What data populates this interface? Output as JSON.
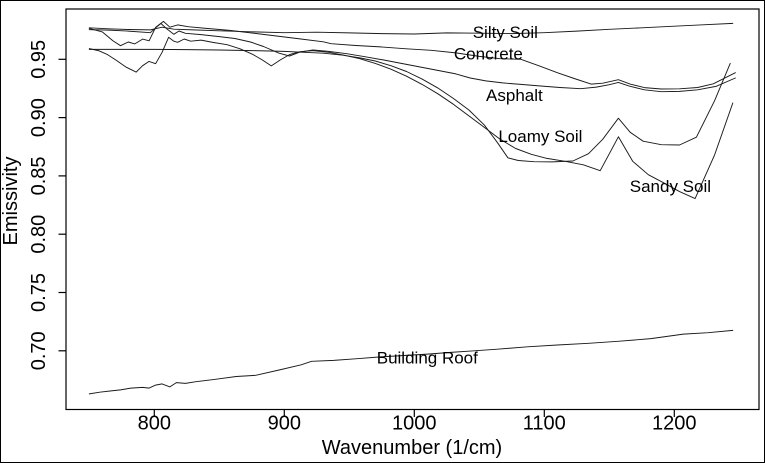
{
  "figure": {
    "background": "#ffffff",
    "border_color": "#000000",
    "line_color": "#1a1a1a"
  },
  "chart_data": {
    "type": "line",
    "title": "",
    "xlabel": "Wavenumber (1/cm)",
    "ylabel": "Emissivity",
    "x_ticks": [
      "800",
      "900",
      "1000",
      "1100",
      "1200"
    ],
    "y_ticks": [
      "0.70",
      "0.75",
      "0.80",
      "0.85",
      "0.90",
      "0.95"
    ],
    "x_axis_range": [
      745,
      1265
    ],
    "y_axis_range": [
      0.648,
      0.992
    ],
    "grid": false,
    "legend_position": "inline-labels",
    "series": [
      {
        "name": "Silty Soil",
        "label": {
          "x": 1070,
          "y": 0.9734
        },
        "points": [
          [
            750,
            0.977
          ],
          [
            765,
            0.9762
          ],
          [
            780,
            0.9756
          ],
          [
            797,
            0.9752
          ],
          [
            806,
            0.9775
          ],
          [
            815,
            0.9758
          ],
          [
            830,
            0.9752
          ],
          [
            850,
            0.9744
          ],
          [
            875,
            0.9736
          ],
          [
            900,
            0.9728
          ],
          [
            925,
            0.9732
          ],
          [
            950,
            0.9726
          ],
          [
            975,
            0.972
          ],
          [
            1000,
            0.9717
          ],
          [
            1025,
            0.9726
          ],
          [
            1050,
            0.9724
          ],
          [
            1075,
            0.972
          ],
          [
            1100,
            0.9728
          ],
          [
            1125,
            0.9742
          ],
          [
            1150,
            0.9757
          ],
          [
            1175,
            0.977
          ],
          [
            1200,
            0.9784
          ],
          [
            1222,
            0.9796
          ],
          [
            1245,
            0.9808
          ]
        ]
      },
      {
        "name": "Concrete",
        "label": {
          "x": 1057,
          "y": 0.955
        },
        "points": [
          [
            750,
            0.9755
          ],
          [
            765,
            0.975
          ],
          [
            780,
            0.9742
          ],
          [
            797,
            0.9728
          ],
          [
            802,
            0.978
          ],
          [
            807,
            0.9825
          ],
          [
            812,
            0.9775
          ],
          [
            818,
            0.9795
          ],
          [
            826,
            0.978
          ],
          [
            840,
            0.9765
          ],
          [
            858,
            0.9748
          ],
          [
            876,
            0.9725
          ],
          [
            894,
            0.97
          ],
          [
            912,
            0.9675
          ],
          [
            930,
            0.965
          ],
          [
            936,
            0.9634
          ],
          [
            955,
            0.9618
          ],
          [
            974,
            0.9606
          ],
          [
            994,
            0.959
          ],
          [
            1013,
            0.9577
          ],
          [
            1032,
            0.9555
          ],
          [
            1050,
            0.9525
          ],
          [
            1066,
            0.9505
          ],
          [
            1082,
            0.95
          ],
          [
            1097,
            0.944
          ],
          [
            1110,
            0.9385
          ],
          [
            1123,
            0.9335
          ],
          [
            1136,
            0.9287
          ],
          [
            1145,
            0.9295
          ],
          [
            1157,
            0.9325
          ],
          [
            1166,
            0.9287
          ],
          [
            1177,
            0.9257
          ],
          [
            1190,
            0.9245
          ],
          [
            1204,
            0.9247
          ],
          [
            1218,
            0.9258
          ],
          [
            1230,
            0.929
          ],
          [
            1247,
            0.9385
          ]
        ]
      },
      {
        "name": "Asphalt",
        "label": {
          "x": 1077,
          "y": 0.9194
        },
        "points": [
          [
            750,
            0.9765
          ],
          [
            760,
            0.9735
          ],
          [
            768,
            0.966
          ],
          [
            774,
            0.9617
          ],
          [
            780,
            0.9648
          ],
          [
            785,
            0.9632
          ],
          [
            791,
            0.9673
          ],
          [
            796,
            0.9659
          ],
          [
            801,
            0.9774
          ],
          [
            805,
            0.9808
          ],
          [
            810,
            0.9757
          ],
          [
            815,
            0.9714
          ],
          [
            819,
            0.9743
          ],
          [
            824,
            0.9723
          ],
          [
            836,
            0.9712
          ],
          [
            850,
            0.9695
          ],
          [
            862,
            0.9678
          ],
          [
            874,
            0.9648
          ],
          [
            884,
            0.961
          ],
          [
            896,
            0.9552
          ],
          [
            904,
            0.9528
          ],
          [
            912,
            0.9562
          ],
          [
            922,
            0.958
          ],
          [
            934,
            0.9568
          ],
          [
            948,
            0.9548
          ],
          [
            962,
            0.9522
          ],
          [
            976,
            0.9495
          ],
          [
            990,
            0.9465
          ],
          [
            1004,
            0.9435
          ],
          [
            1018,
            0.9405
          ],
          [
            1032,
            0.9375
          ],
          [
            1043,
            0.934
          ],
          [
            1055,
            0.9315
          ],
          [
            1068,
            0.9298
          ],
          [
            1082,
            0.9285
          ],
          [
            1096,
            0.9272
          ],
          [
            1112,
            0.9258
          ],
          [
            1128,
            0.9248
          ],
          [
            1140,
            0.9262
          ],
          [
            1150,
            0.9282
          ],
          [
            1157,
            0.9302
          ],
          [
            1165,
            0.9272
          ],
          [
            1177,
            0.9238
          ],
          [
            1190,
            0.9222
          ],
          [
            1204,
            0.9225
          ],
          [
            1218,
            0.9238
          ],
          [
            1232,
            0.9268
          ],
          [
            1247,
            0.934
          ]
        ]
      },
      {
        "name": "Loamy Soil",
        "label": {
          "x": 1097,
          "y": 0.8842
        },
        "points": [
          [
            750,
            0.9585
          ],
          [
            775,
            0.9585
          ],
          [
            800,
            0.9585
          ],
          [
            825,
            0.9583
          ],
          [
            850,
            0.958
          ],
          [
            875,
            0.9575
          ],
          [
            900,
            0.9568
          ],
          [
            915,
            0.956
          ],
          [
            930,
            0.9552
          ],
          [
            945,
            0.9535
          ],
          [
            958,
            0.9512
          ],
          [
            970,
            0.9485
          ],
          [
            982,
            0.9445
          ],
          [
            994,
            0.9395
          ],
          [
            1006,
            0.933
          ],
          [
            1018,
            0.9255
          ],
          [
            1030,
            0.9165
          ],
          [
            1042,
            0.9065
          ],
          [
            1054,
            0.8935
          ],
          [
            1064,
            0.8785
          ],
          [
            1072,
            0.8655
          ],
          [
            1080,
            0.8632
          ],
          [
            1092,
            0.8622
          ],
          [
            1106,
            0.862
          ],
          [
            1122,
            0.8628
          ],
          [
            1134,
            0.869
          ],
          [
            1145,
            0.8815
          ],
          [
            1157,
            0.8995
          ],
          [
            1166,
            0.8875
          ],
          [
            1176,
            0.8798
          ],
          [
            1190,
            0.8768
          ],
          [
            1204,
            0.8765
          ],
          [
            1217,
            0.8832
          ],
          [
            1231,
            0.9145
          ],
          [
            1243,
            0.9465
          ]
        ]
      },
      {
        "name": "Sandy Soil",
        "label": {
          "x": 1197,
          "y": 0.8414
        },
        "points": [
          [
            750,
            0.9592
          ],
          [
            757,
            0.9575
          ],
          [
            764,
            0.954
          ],
          [
            771,
            0.949
          ],
          [
            778,
            0.9435
          ],
          [
            786,
            0.939
          ],
          [
            791,
            0.9445
          ],
          [
            796,
            0.9482
          ],
          [
            801,
            0.9462
          ],
          [
            806,
            0.956
          ],
          [
            811,
            0.9689
          ],
          [
            815,
            0.9655
          ],
          [
            818,
            0.9646
          ],
          [
            823,
            0.9674
          ],
          [
            828,
            0.9655
          ],
          [
            836,
            0.9665
          ],
          [
            845,
            0.9645
          ],
          [
            856,
            0.9625
          ],
          [
            866,
            0.959
          ],
          [
            876,
            0.954
          ],
          [
            883,
            0.9495
          ],
          [
            890,
            0.9443
          ],
          [
            897,
            0.9495
          ],
          [
            904,
            0.954
          ],
          [
            912,
            0.9565
          ],
          [
            922,
            0.9575
          ],
          [
            934,
            0.956
          ],
          [
            946,
            0.9535
          ],
          [
            958,
            0.9505
          ],
          [
            970,
            0.9465
          ],
          [
            982,
            0.9415
          ],
          [
            994,
            0.9355
          ],
          [
            1006,
            0.9285
          ],
          [
            1018,
            0.9205
          ],
          [
            1030,
            0.9115
          ],
          [
            1042,
            0.9015
          ],
          [
            1054,
            0.8915
          ],
          [
            1066,
            0.8815
          ],
          [
            1078,
            0.8735
          ],
          [
            1090,
            0.8685
          ],
          [
            1102,
            0.865
          ],
          [
            1116,
            0.8625
          ],
          [
            1130,
            0.8595
          ],
          [
            1143,
            0.8545
          ],
          [
            1157,
            0.8835
          ],
          [
            1168,
            0.8625
          ],
          [
            1180,
            0.851
          ],
          [
            1192,
            0.844
          ],
          [
            1204,
            0.8365
          ],
          [
            1216,
            0.8305
          ],
          [
            1231,
            0.868
          ],
          [
            1245,
            0.9125
          ]
        ]
      },
      {
        "name": "Building Roof",
        "label": {
          "x": 1010,
          "y": 0.6944
        },
        "points": [
          [
            750,
            0.663
          ],
          [
            758,
            0.6645
          ],
          [
            766,
            0.6655
          ],
          [
            774,
            0.6665
          ],
          [
            782,
            0.668
          ],
          [
            791,
            0.6686
          ],
          [
            796,
            0.668
          ],
          [
            801,
            0.6706
          ],
          [
            806,
            0.6716
          ],
          [
            812,
            0.669
          ],
          [
            817,
            0.6727
          ],
          [
            824,
            0.672
          ],
          [
            832,
            0.6735
          ],
          [
            847,
            0.6756
          ],
          [
            863,
            0.678
          ],
          [
            878,
            0.679
          ],
          [
            896,
            0.6835
          ],
          [
            913,
            0.688
          ],
          [
            921,
            0.691
          ],
          [
            938,
            0.6918
          ],
          [
            956,
            0.6932
          ],
          [
            974,
            0.6948
          ],
          [
            992,
            0.696
          ],
          [
            1010,
            0.6972
          ],
          [
            1028,
            0.6986
          ],
          [
            1046,
            0.7
          ],
          [
            1064,
            0.7014
          ],
          [
            1087,
            0.7034
          ],
          [
            1110,
            0.705
          ],
          [
            1134,
            0.7064
          ],
          [
            1158,
            0.7082
          ],
          [
            1182,
            0.7105
          ],
          [
            1207,
            0.7143
          ],
          [
            1226,
            0.7155
          ],
          [
            1245,
            0.7175
          ]
        ]
      }
    ]
  }
}
